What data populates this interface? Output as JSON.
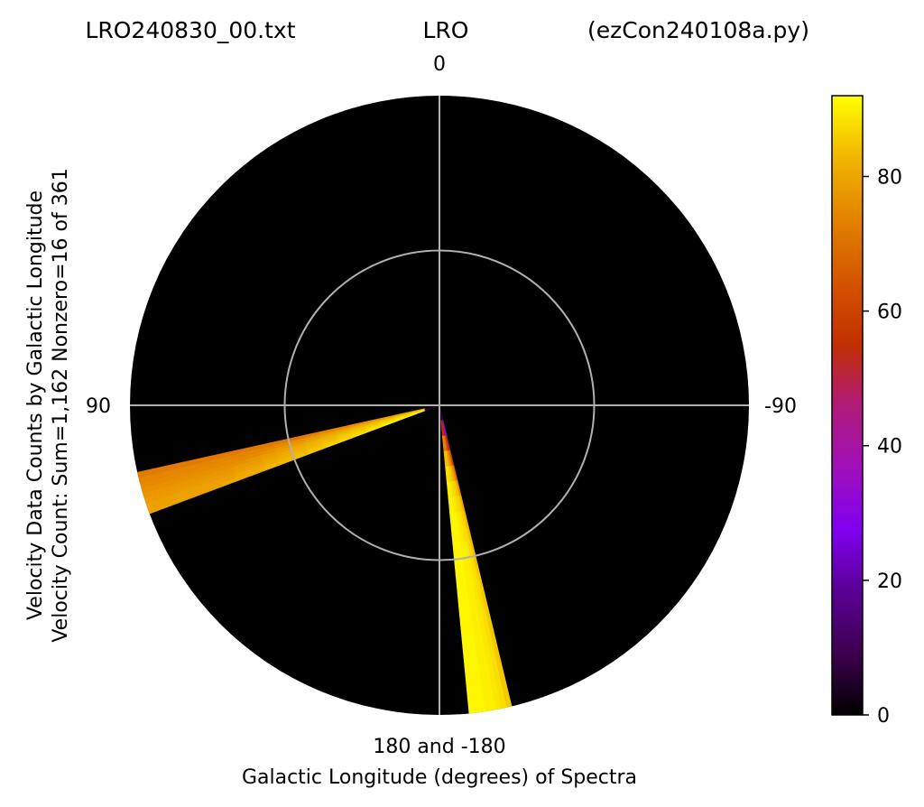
{
  "header": {
    "filename": "LRO240830_00.txt",
    "station": "LRO",
    "program": "(ezCon240108a.py)"
  },
  "chart_data": {
    "type": "heatmap",
    "projection": "polar",
    "ylabel_line1": "Velocity Data Counts by Galactic Longitude",
    "ylabel_line2": "Velocity Count: Sum=1,162 Nonzero=16 of 361",
    "xlabel": "Galactic Longitude (degrees) of Spectra",
    "angle_ticks": [
      {
        "angle": 0,
        "label": "0"
      },
      {
        "angle": 90,
        "label": "90"
      },
      {
        "angle": -90,
        "label": "-90"
      },
      {
        "angle": 180,
        "label": "180 and -180"
      }
    ],
    "radius_grid": [
      0.5
    ],
    "grid": true,
    "colormap": "gnuplot",
    "colorbar": {
      "min": 0,
      "max": 92,
      "ticks": [
        0,
        20,
        40,
        60,
        80
      ]
    },
    "background_value": 0,
    "wedges": [
      {
        "longitude": 110,
        "counts": [
          7,
          92,
          91,
          90,
          89,
          88,
          87,
          86,
          85,
          84,
          83,
          82,
          81,
          80,
          80,
          79,
          79,
          79,
          79,
          79
        ]
      },
      {
        "longitude": 109,
        "counts": [
          5,
          91,
          90,
          89,
          88,
          87,
          86,
          85,
          84,
          83,
          82,
          81,
          80,
          80,
          79,
          79,
          79,
          79,
          79,
          79
        ]
      },
      {
        "longitude": 108,
        "counts": [
          4,
          90,
          89,
          88,
          87,
          86,
          85,
          84,
          83,
          82,
          81,
          80,
          79,
          79,
          78,
          78,
          78,
          78,
          78,
          78
        ]
      },
      {
        "longitude": 107,
        "counts": [
          3,
          89,
          88,
          87,
          86,
          85,
          84,
          83,
          82,
          81,
          80,
          79,
          78,
          78,
          77,
          77,
          77,
          77,
          77,
          77
        ]
      },
      {
        "longitude": 106,
        "counts": [
          2,
          88,
          87,
          86,
          85,
          84,
          83,
          82,
          81,
          80,
          79,
          78,
          77,
          76,
          76,
          76,
          76,
          76,
          76,
          76
        ]
      },
      {
        "longitude": 105,
        "counts": [
          2,
          86,
          85,
          84,
          83,
          82,
          81,
          80,
          79,
          78,
          77,
          76,
          75,
          75,
          75,
          75,
          75,
          75,
          75,
          75
        ]
      },
      {
        "longitude": 104,
        "counts": [
          1,
          84,
          83,
          82,
          81,
          80,
          79,
          78,
          77,
          76,
          75,
          74,
          74,
          74,
          74,
          74,
          74,
          74,
          74,
          74
        ]
      },
      {
        "longitude": 103,
        "counts": [
          1,
          80,
          79,
          78,
          77,
          76,
          75,
          74,
          73,
          72,
          72,
          72,
          72,
          72,
          72,
          72,
          72,
          72,
          72,
          72
        ]
      },
      {
        "longitude": 193,
        "counts": [
          6,
          20,
          38,
          55,
          68,
          76,
          80,
          82,
          83,
          84,
          84,
          85,
          85,
          85,
          85,
          85,
          85,
          85,
          85,
          85
        ]
      },
      {
        "longitude": 192,
        "counts": [
          5,
          30,
          50,
          66,
          76,
          82,
          85,
          86,
          87,
          87,
          88,
          88,
          88,
          88,
          88,
          88,
          88,
          88,
          88,
          88
        ]
      },
      {
        "longitude": 191,
        "counts": [
          4,
          35,
          58,
          72,
          80,
          85,
          87,
          88,
          88,
          89,
          89,
          89,
          89,
          89,
          89,
          89,
          89,
          89,
          89,
          89
        ]
      },
      {
        "longitude": 190,
        "counts": [
          4,
          40,
          62,
          76,
          83,
          87,
          88,
          89,
          89,
          90,
          90,
          90,
          90,
          90,
          90,
          90,
          90,
          90,
          90,
          90
        ]
      },
      {
        "longitude": 189,
        "counts": [
          3,
          45,
          68,
          80,
          86,
          88,
          89,
          90,
          90,
          90,
          90,
          90,
          90,
          90,
          90,
          90,
          90,
          90,
          90,
          90
        ]
      },
      {
        "longitude": 188,
        "counts": [
          3,
          50,
          72,
          82,
          87,
          89,
          90,
          91,
          91,
          91,
          91,
          91,
          91,
          91,
          91,
          91,
          91,
          91,
          91,
          91
        ]
      },
      {
        "longitude": 187,
        "counts": [
          2,
          55,
          76,
          85,
          89,
          90,
          91,
          91,
          91,
          91,
          91,
          91,
          91,
          91,
          91,
          91,
          91,
          91,
          91,
          91
        ]
      },
      {
        "longitude": 186,
        "counts": [
          1,
          52,
          74,
          84,
          88,
          90,
          90,
          91,
          91,
          91,
          91,
          91,
          91,
          91,
          91,
          91,
          91,
          91,
          91,
          91
        ]
      }
    ]
  }
}
